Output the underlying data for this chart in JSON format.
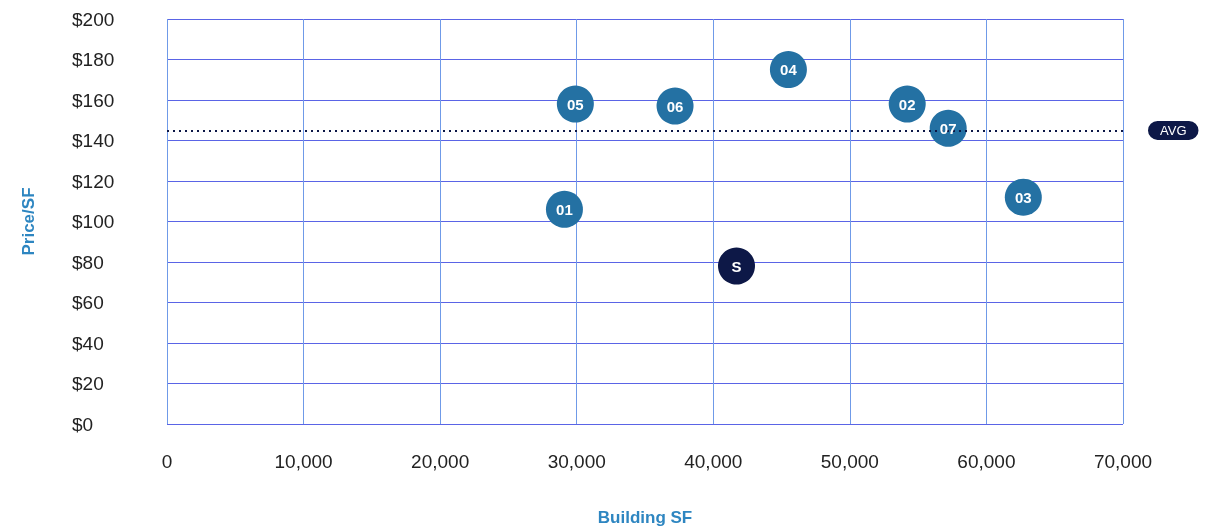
{
  "chart_data": {
    "type": "scatter",
    "xlabel": "Building SF",
    "ylabel": "Price/SF",
    "xlim": [
      0,
      70000
    ],
    "ylim": [
      0,
      200
    ],
    "xticks": [
      0,
      {
        "value": 10000,
        "label": "10,000"
      },
      {
        "value": 20000,
        "label": "20,000"
      },
      {
        "value": 30000,
        "label": "30,000"
      },
      {
        "value": 40000,
        "label": "40,000"
      },
      {
        "value": 50000,
        "label": "50,000"
      },
      {
        "value": 60000,
        "label": "60,000"
      },
      {
        "value": 70000,
        "label": "70,000"
      }
    ],
    "yticks": [
      {
        "value": 0,
        "label": "$0"
      },
      {
        "value": 20,
        "label": "$20"
      },
      {
        "value": 40,
        "label": "$40"
      },
      {
        "value": 60,
        "label": "$60"
      },
      {
        "value": 80,
        "label": "$80"
      },
      {
        "value": 100,
        "label": "$100"
      },
      {
        "value": 120,
        "label": "$120"
      },
      {
        "value": 140,
        "label": "$140"
      },
      {
        "value": 160,
        "label": "$160"
      },
      {
        "value": 180,
        "label": "$180"
      },
      {
        "value": 200,
        "label": "$200"
      }
    ],
    "series": [
      {
        "color": "#2471a3",
        "x": [
          29100,
          54200,
          62700,
          45500,
          29900,
          37200,
          57200
        ],
        "values": [
          106,
          158,
          112,
          175,
          158,
          157,
          146
        ]
      },
      {
        "color": "#0d1847",
        "x": [
          41700
        ],
        "values": [
          78
        ]
      }
    ],
    "annotations": [
      {
        "text": "01",
        "x": 29100,
        "y": 106
      },
      {
        "text": "02",
        "x": 54200,
        "y": 158
      },
      {
        "text": "03",
        "x": 62700,
        "y": 112
      },
      {
        "text": "04",
        "x": 45500,
        "y": 175
      },
      {
        "text": "05",
        "x": 29900,
        "y": 158
      },
      {
        "text": "06",
        "x": 37200,
        "y": 157
      },
      {
        "text": "07",
        "x": 57200,
        "y": 146
      },
      {
        "text": "S",
        "x": 41700,
        "y": 78
      }
    ],
    "ref_lines": [
      {
        "axis": "y",
        "value": 145,
        "label": "AVG",
        "color": "#0d1847",
        "line_style": "dotted"
      }
    ],
    "grid": true,
    "marker": "circle"
  }
}
